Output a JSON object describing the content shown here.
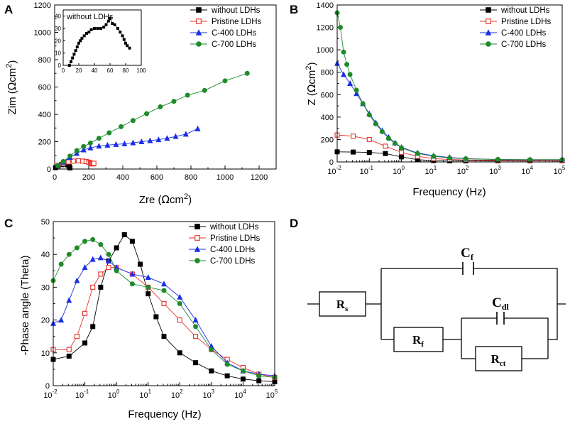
{
  "colors": {
    "without": "#000000",
    "pristine": "#e4322b",
    "c400": "#1a2ee6",
    "c700": "#1f8a2a"
  },
  "chart_data": [
    {
      "id": "A",
      "panel_label": "A",
      "type": "scatter",
      "xlabel": "Zre (Ωcm²)",
      "ylabel": "Zim (Ωcm²)",
      "xlim": [
        0,
        1300
      ],
      "ylim": [
        0,
        1200
      ],
      "xticks": [
        0,
        200,
        400,
        600,
        800,
        1000,
        1200
      ],
      "yticks": [
        0,
        200,
        400,
        600,
        800,
        1000,
        1200
      ],
      "legend": [
        "without LDHs",
        "Pristine LDHs",
        "C-400 LDHs",
        "C-700 LDHs"
      ],
      "series": [
        {
          "name": "without LDHs",
          "marker": "square-filled",
          "color": "#000000",
          "x": [
            5,
            20,
            40,
            60,
            75,
            85,
            90
          ],
          "y": [
            10,
            22,
            32,
            35,
            30,
            18,
            8
          ]
        },
        {
          "name": "Pristine LDHs",
          "marker": "square-open",
          "color": "#e4322b",
          "x": [
            20,
            50,
            80,
            110,
            140,
            165,
            185,
            200,
            210,
            215,
            220,
            225,
            228,
            230
          ],
          "y": [
            25,
            40,
            52,
            58,
            60,
            58,
            55,
            50,
            45,
            42,
            38,
            38,
            40,
            42
          ]
        },
        {
          "name": "C-400 LDHs",
          "marker": "triangle-filled",
          "color": "#1a2ee6",
          "x": [
            20,
            50,
            90,
            130,
            170,
            210,
            260,
            310,
            360,
            410,
            460,
            510,
            560,
            610,
            660,
            710,
            770,
            840
          ],
          "y": [
            25,
            50,
            85,
            115,
            140,
            155,
            168,
            175,
            180,
            185,
            192,
            200,
            208,
            215,
            225,
            238,
            255,
            295
          ]
        },
        {
          "name": "C-700 LDHs",
          "marker": "circle-filled",
          "color": "#1f8a2a",
          "x": [
            20,
            50,
            90,
            130,
            170,
            210,
            260,
            320,
            390,
            460,
            540,
            620,
            700,
            780,
            880,
            1000,
            1130
          ],
          "y": [
            25,
            55,
            95,
            135,
            165,
            190,
            225,
            265,
            310,
            355,
            405,
            455,
            495,
            540,
            575,
            645,
            700
          ]
        }
      ],
      "inset": {
        "label": "without LDHs",
        "xlim": [
          0,
          100
        ],
        "ylim": [
          0,
          45
        ],
        "xticks": [
          0,
          20,
          40,
          60,
          80,
          100
        ],
        "yticks": [
          0,
          10,
          20,
          30,
          40
        ],
        "x": [
          8,
          10,
          12,
          14,
          16,
          18,
          20,
          22,
          24,
          27,
          30,
          33,
          36,
          40,
          44,
          48,
          52,
          55,
          58,
          60,
          63,
          66,
          70,
          73,
          76,
          78,
          80,
          82,
          85
        ],
        "y": [
          0,
          3,
          6,
          9,
          12,
          15,
          18,
          20,
          22,
          24,
          26,
          27,
          29,
          30,
          30,
          30,
          31,
          33,
          36,
          38,
          34,
          33,
          30,
          27,
          24,
          21,
          18,
          16,
          14
        ]
      }
    },
    {
      "id": "B",
      "panel_label": "B",
      "type": "scatter",
      "xscale": "log",
      "xlabel": "Frequency (Hz)",
      "ylabel": "Z (Ωcm²)",
      "xlim": [
        0.01,
        100000
      ],
      "ylim": [
        0,
        1400
      ],
      "xtick_exponents": [
        -2,
        -1,
        0,
        1,
        2,
        3,
        4,
        5
      ],
      "yticks": [
        0,
        200,
        400,
        600,
        800,
        1000,
        1200,
        1400
      ],
      "legend": [
        "without LDHs",
        "Pristine LDHs",
        "C-400 LDHs",
        "C-700 LDHs"
      ],
      "series": [
        {
          "name": "without LDHs",
          "marker": "square-filled",
          "color": "#000000",
          "logx": [
            -2,
            -1.5,
            -1,
            -0.5,
            0,
            0.5,
            1,
            1.5,
            2,
            3,
            4,
            5
          ],
          "y": [
            90,
            88,
            85,
            75,
            45,
            20,
            12,
            10,
            10,
            10,
            10,
            10
          ]
        },
        {
          "name": "Pristine LDHs",
          "marker": "square-open",
          "color": "#e4322b",
          "logx": [
            -2,
            -1.5,
            -1,
            -0.5,
            0,
            0.5,
            1,
            1.5,
            2,
            3,
            4,
            5
          ],
          "y": [
            240,
            230,
            200,
            140,
            85,
            50,
            30,
            22,
            18,
            15,
            13,
            12
          ]
        },
        {
          "name": "C-400 LDHs",
          "marker": "triangle-filled",
          "color": "#1a2ee6",
          "logx": [
            -2,
            -1.8,
            -1.6,
            -1.4,
            -1.2,
            -1,
            -0.8,
            -0.6,
            -0.4,
            -0.2,
            0,
            0.5,
            1,
            1.5,
            2,
            3,
            4,
            5
          ],
          "y": [
            880,
            780,
            700,
            610,
            520,
            430,
            350,
            280,
            220,
            170,
            130,
            80,
            55,
            40,
            30,
            22,
            20,
            20
          ]
        },
        {
          "name": "C-700 LDHs",
          "marker": "circle-filled",
          "color": "#1f8a2a",
          "logx": [
            -2,
            -1.9,
            -1.8,
            -1.7,
            -1.6,
            -1.4,
            -1.2,
            -1,
            -0.8,
            -0.6,
            -0.4,
            -0.2,
            0,
            0.5,
            1,
            1.5,
            2,
            3,
            4,
            5
          ],
          "y": [
            1330,
            1200,
            980,
            870,
            780,
            640,
            520,
            420,
            340,
            270,
            210,
            165,
            125,
            75,
            50,
            35,
            28,
            22,
            20,
            20
          ]
        }
      ]
    },
    {
      "id": "C",
      "panel_label": "C",
      "type": "scatter",
      "xscale": "log",
      "xlabel": "Frequency (Hz)",
      "ylabel": "-Phase angle (Theta)",
      "xlim": [
        0.01,
        100000
      ],
      "ylim": [
        0,
        50
      ],
      "xtick_exponents": [
        -2,
        -1,
        0,
        1,
        2,
        3,
        4,
        5
      ],
      "yticks": [
        0,
        10,
        20,
        30,
        40,
        50
      ],
      "legend": [
        "without LDHs",
        "Pristine LDHs",
        "C-400 LDHs",
        "C-700 LDHs"
      ],
      "series": [
        {
          "name": "without LDHs",
          "marker": "square-filled",
          "color": "#000000",
          "logx": [
            -2,
            -1.5,
            -1,
            -0.75,
            -0.5,
            -0.25,
            0,
            0.25,
            0.5,
            0.75,
            1,
            1.25,
            1.5,
            2,
            2.5,
            3,
            3.5,
            4,
            4.5,
            5
          ],
          "y": [
            8,
            9,
            13,
            18,
            30,
            38,
            42,
            46,
            44,
            37,
            28,
            21,
            15,
            10,
            7,
            4.5,
            3,
            2,
            1.5,
            1.2
          ]
        },
        {
          "name": "Pristine LDHs",
          "marker": "square-open",
          "color": "#e4322b",
          "logx": [
            -2,
            -1.5,
            -1.25,
            -1,
            -0.75,
            -0.5,
            -0.25,
            0,
            0.5,
            1,
            1.5,
            2,
            2.5,
            3,
            3.5,
            4,
            4.5,
            5
          ],
          "y": [
            11,
            11,
            15,
            22,
            30,
            34,
            36,
            36,
            34,
            30,
            25,
            20,
            15,
            11,
            8,
            5.5,
            3.5,
            2.5
          ]
        },
        {
          "name": "C-400 LDHs",
          "marker": "triangle-filled",
          "color": "#1a2ee6",
          "logx": [
            -2,
            -1.75,
            -1.5,
            -1.25,
            -1,
            -0.75,
            -0.5,
            -0.25,
            0,
            0.5,
            1,
            1.5,
            2,
            2.5,
            3,
            3.5,
            4,
            4.5,
            5
          ],
          "y": [
            19,
            20,
            26,
            32,
            36,
            38.5,
            39,
            38,
            36,
            34,
            33,
            31,
            27,
            20,
            12,
            7,
            4.5,
            3.5,
            3
          ]
        },
        {
          "name": "C-700 LDHs",
          "marker": "circle-filled",
          "color": "#1f8a2a",
          "logx": [
            -2,
            -1.75,
            -1.5,
            -1.25,
            -1,
            -0.75,
            -0.5,
            -0.25,
            0,
            0.5,
            1,
            1.5,
            2,
            2.5,
            3,
            3.5,
            4,
            4.5,
            5
          ],
          "y": [
            32,
            37,
            40,
            42,
            44,
            44.5,
            43,
            40,
            35,
            31,
            30,
            29,
            25,
            18,
            11,
            6.5,
            4.5,
            3,
            2.5
          ]
        }
      ]
    }
  ],
  "circuit": {
    "panel_label": "D",
    "labels": {
      "Rs": "R",
      "Rs_sub": "s",
      "Cf": "C",
      "Cf_sub": "f",
      "Rf": "R",
      "Rf_sub": "f",
      "Cdl": "C",
      "Cdl_sub": "dl",
      "Rct": "R",
      "Rct_sub": "ct"
    }
  }
}
